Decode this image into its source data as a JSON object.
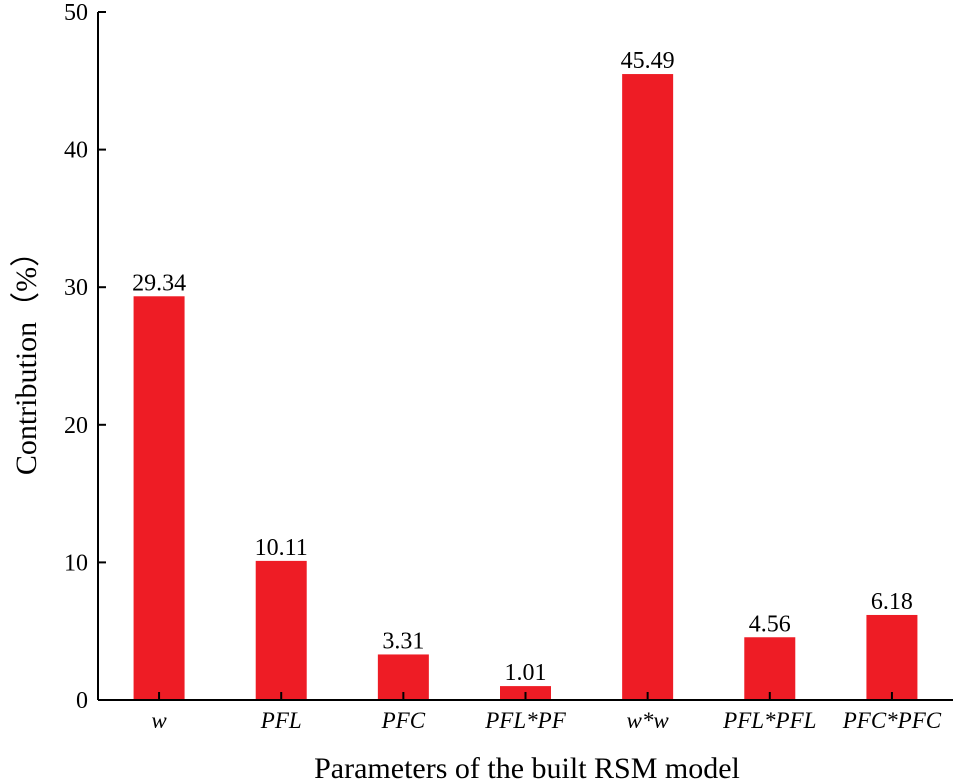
{
  "chart_data": {
    "type": "bar",
    "title": "",
    "xlabel": "Parameters of the built RSM model",
    "ylabel": "Contribution（%）",
    "categories": [
      "w",
      "PFL",
      "PFC",
      "PFL*PF",
      "w*w",
      "PFL*PFL",
      "PFC*PFC"
    ],
    "values": [
      29.34,
      10.11,
      3.31,
      1.01,
      45.49,
      4.56,
      6.18
    ],
    "value_labels": [
      "29.34",
      "10.11",
      "3.31",
      "1.01",
      "45.49",
      "4.56",
      "6.18"
    ],
    "ylim": [
      0,
      50
    ],
    "yticks": [
      0,
      10,
      20,
      30,
      40,
      50
    ],
    "grid": false,
    "bar_color": "#ee1c25"
  }
}
